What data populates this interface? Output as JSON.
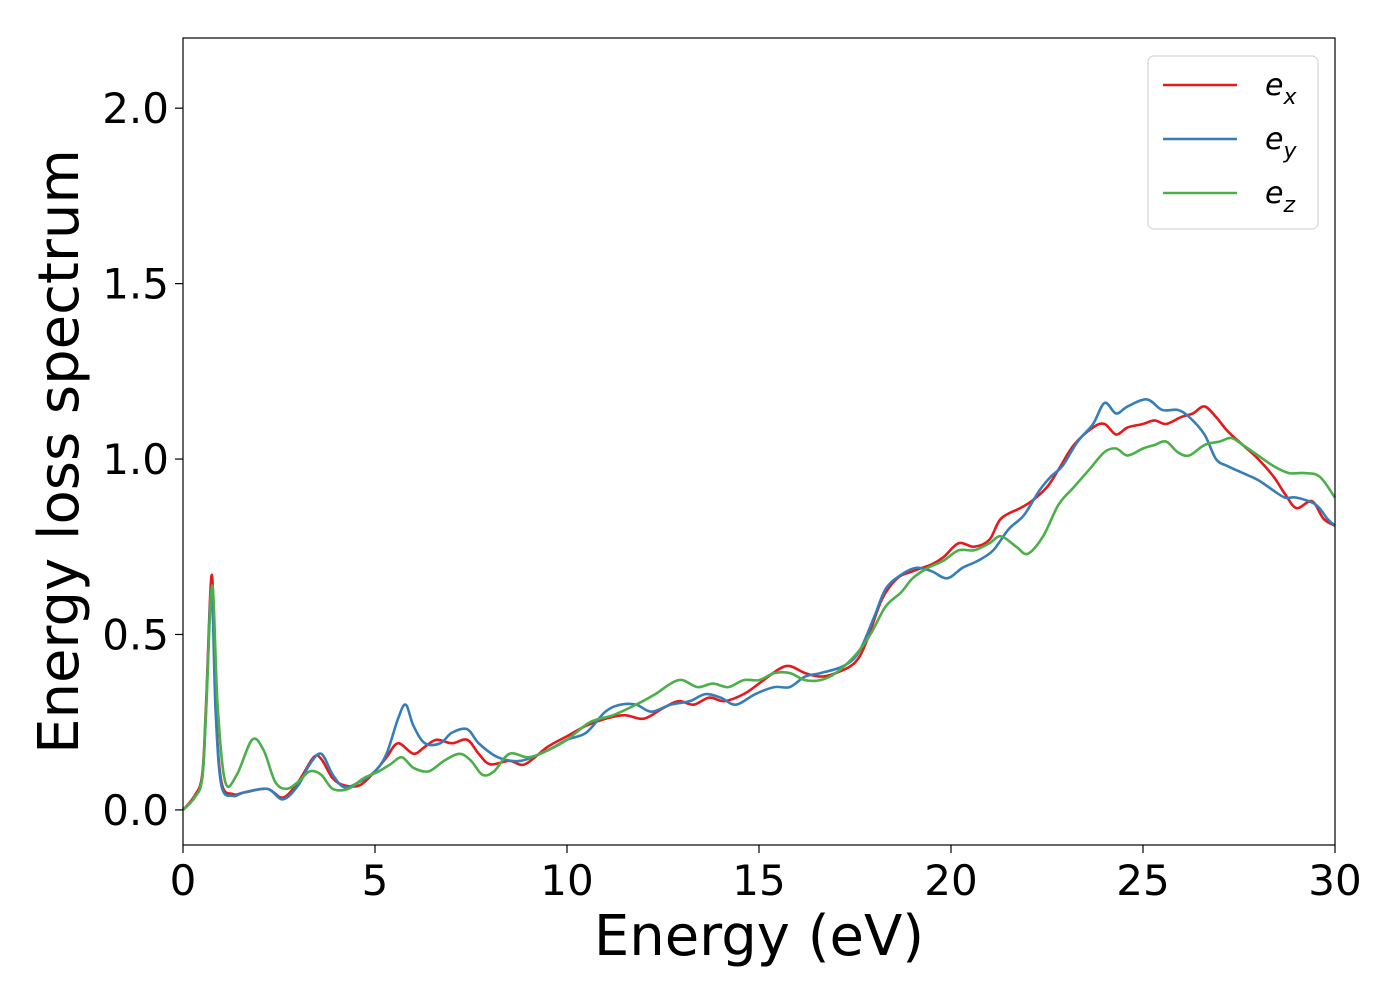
{
  "chart_data": {
    "type": "line",
    "title": "",
    "xlabel": "Energy (eV)",
    "ylabel": "Energy loss spectrum",
    "xlim": [
      0,
      30
    ],
    "ylim": [
      -0.1,
      2.2
    ],
    "xticks": [
      0,
      5,
      10,
      15,
      20,
      25,
      30
    ],
    "xtick_labels": [
      "0",
      "5",
      "10",
      "15",
      "20",
      "25",
      "30"
    ],
    "yticks": [
      0.0,
      0.5,
      1.0,
      1.5,
      2.0
    ],
    "ytick_labels": [
      "0.0",
      "0.5",
      "1.0",
      "1.5",
      "2.0"
    ],
    "grid": false,
    "legend_position": "top-right",
    "series": [
      {
        "name": "e_x",
        "legend_base": "e",
        "legend_sub": "x",
        "color": "#e41a1c",
        "points": [
          [
            0,
            0
          ],
          [
            0.3,
            0.04
          ],
          [
            0.5,
            0.1
          ],
          [
            0.6,
            0.3
          ],
          [
            0.75,
            0.67
          ],
          [
            0.85,
            0.3
          ],
          [
            1.0,
            0.08
          ],
          [
            1.3,
            0.045
          ],
          [
            1.6,
            0.05
          ],
          [
            2.2,
            0.06
          ],
          [
            2.6,
            0.035
          ],
          [
            3.0,
            0.08
          ],
          [
            3.4,
            0.15
          ],
          [
            3.6,
            0.145
          ],
          [
            3.9,
            0.09
          ],
          [
            4.2,
            0.07
          ],
          [
            4.6,
            0.07
          ],
          [
            5.0,
            0.11
          ],
          [
            5.3,
            0.15
          ],
          [
            5.6,
            0.19
          ],
          [
            6.0,
            0.16
          ],
          [
            6.3,
            0.18
          ],
          [
            6.6,
            0.2
          ],
          [
            7.0,
            0.19
          ],
          [
            7.4,
            0.2
          ],
          [
            7.7,
            0.16
          ],
          [
            8.0,
            0.13
          ],
          [
            8.5,
            0.14
          ],
          [
            8.9,
            0.13
          ],
          [
            9.5,
            0.18
          ],
          [
            10.0,
            0.21
          ],
          [
            10.5,
            0.24
          ],
          [
            11.0,
            0.26
          ],
          [
            11.5,
            0.27
          ],
          [
            12.0,
            0.26
          ],
          [
            12.5,
            0.29
          ],
          [
            12.9,
            0.31
          ],
          [
            13.3,
            0.3
          ],
          [
            13.7,
            0.32
          ],
          [
            14.1,
            0.31
          ],
          [
            14.6,
            0.33
          ],
          [
            15.0,
            0.36
          ],
          [
            15.5,
            0.4
          ],
          [
            15.8,
            0.41
          ],
          [
            16.2,
            0.39
          ],
          [
            16.6,
            0.38
          ],
          [
            17.0,
            0.39
          ],
          [
            17.5,
            0.42
          ],
          [
            17.8,
            0.48
          ],
          [
            18.2,
            0.6
          ],
          [
            18.6,
            0.66
          ],
          [
            19.0,
            0.68
          ],
          [
            19.5,
            0.7
          ],
          [
            19.8,
            0.72
          ],
          [
            20.2,
            0.76
          ],
          [
            20.6,
            0.75
          ],
          [
            21.0,
            0.77
          ],
          [
            21.3,
            0.83
          ],
          [
            21.8,
            0.86
          ],
          [
            22.1,
            0.88
          ],
          [
            22.5,
            0.92
          ],
          [
            22.8,
            0.97
          ],
          [
            23.2,
            1.04
          ],
          [
            23.7,
            1.09
          ],
          [
            24.0,
            1.1
          ],
          [
            24.3,
            1.07
          ],
          [
            24.6,
            1.09
          ],
          [
            25.0,
            1.1
          ],
          [
            25.3,
            1.11
          ],
          [
            25.6,
            1.1
          ],
          [
            26.0,
            1.12
          ],
          [
            26.3,
            1.13
          ],
          [
            26.6,
            1.15
          ],
          [
            26.9,
            1.12
          ],
          [
            27.2,
            1.08
          ],
          [
            27.6,
            1.04
          ],
          [
            28.0,
            1.0
          ],
          [
            28.4,
            0.95
          ],
          [
            28.7,
            0.9
          ],
          [
            29.0,
            0.86
          ],
          [
            29.4,
            0.88
          ],
          [
            29.7,
            0.83
          ],
          [
            30.0,
            0.81
          ]
        ]
      },
      {
        "name": "e_y",
        "legend_base": "e",
        "legend_sub": "y",
        "color": "#377eb8",
        "points": [
          [
            0,
            0
          ],
          [
            0.3,
            0.035
          ],
          [
            0.5,
            0.09
          ],
          [
            0.6,
            0.28
          ],
          [
            0.74,
            0.63
          ],
          [
            0.85,
            0.28
          ],
          [
            1.0,
            0.07
          ],
          [
            1.3,
            0.04
          ],
          [
            1.6,
            0.05
          ],
          [
            2.2,
            0.06
          ],
          [
            2.6,
            0.03
          ],
          [
            3.0,
            0.07
          ],
          [
            3.3,
            0.13
          ],
          [
            3.6,
            0.16
          ],
          [
            3.9,
            0.1
          ],
          [
            4.2,
            0.065
          ],
          [
            4.6,
            0.08
          ],
          [
            5.0,
            0.11
          ],
          [
            5.3,
            0.16
          ],
          [
            5.6,
            0.26
          ],
          [
            5.8,
            0.3
          ],
          [
            6.0,
            0.24
          ],
          [
            6.3,
            0.19
          ],
          [
            6.7,
            0.19
          ],
          [
            7.0,
            0.22
          ],
          [
            7.4,
            0.23
          ],
          [
            7.7,
            0.19
          ],
          [
            8.2,
            0.15
          ],
          [
            8.8,
            0.14
          ],
          [
            9.5,
            0.17
          ],
          [
            10.0,
            0.2
          ],
          [
            10.5,
            0.22
          ],
          [
            11.0,
            0.28
          ],
          [
            11.4,
            0.3
          ],
          [
            11.8,
            0.3
          ],
          [
            12.2,
            0.28
          ],
          [
            12.7,
            0.3
          ],
          [
            13.2,
            0.31
          ],
          [
            13.6,
            0.33
          ],
          [
            14.0,
            0.32
          ],
          [
            14.4,
            0.3
          ],
          [
            14.9,
            0.33
          ],
          [
            15.4,
            0.35
          ],
          [
            15.8,
            0.35
          ],
          [
            16.2,
            0.38
          ],
          [
            16.6,
            0.39
          ],
          [
            17.2,
            0.41
          ],
          [
            17.6,
            0.45
          ],
          [
            18.0,
            0.55
          ],
          [
            18.3,
            0.63
          ],
          [
            18.7,
            0.67
          ],
          [
            19.1,
            0.69
          ],
          [
            19.5,
            0.68
          ],
          [
            19.9,
            0.66
          ],
          [
            20.3,
            0.69
          ],
          [
            20.7,
            0.71
          ],
          [
            21.1,
            0.74
          ],
          [
            21.5,
            0.8
          ],
          [
            21.9,
            0.84
          ],
          [
            22.3,
            0.91
          ],
          [
            22.6,
            0.95
          ],
          [
            22.9,
            0.98
          ],
          [
            23.3,
            1.05
          ],
          [
            23.7,
            1.1
          ],
          [
            24.0,
            1.16
          ],
          [
            24.3,
            1.13
          ],
          [
            24.6,
            1.15
          ],
          [
            25.1,
            1.17
          ],
          [
            25.5,
            1.14
          ],
          [
            25.9,
            1.14
          ],
          [
            26.2,
            1.12
          ],
          [
            26.6,
            1.07
          ],
          [
            26.9,
            1.0
          ],
          [
            27.2,
            0.98
          ],
          [
            27.6,
            0.96
          ],
          [
            28.0,
            0.94
          ],
          [
            28.4,
            0.91
          ],
          [
            28.7,
            0.89
          ],
          [
            29.0,
            0.89
          ],
          [
            29.5,
            0.87
          ],
          [
            29.8,
            0.83
          ],
          [
            30.0,
            0.81
          ]
        ]
      },
      {
        "name": "e_z",
        "legend_base": "e",
        "legend_sub": "z",
        "color": "#4daf4a",
        "points": [
          [
            0,
            0
          ],
          [
            0.3,
            0.035
          ],
          [
            0.5,
            0.09
          ],
          [
            0.6,
            0.28
          ],
          [
            0.76,
            0.64
          ],
          [
            0.9,
            0.3
          ],
          [
            1.1,
            0.08
          ],
          [
            1.4,
            0.1
          ],
          [
            1.8,
            0.2
          ],
          [
            2.1,
            0.17
          ],
          [
            2.4,
            0.08
          ],
          [
            2.7,
            0.06
          ],
          [
            3.0,
            0.08
          ],
          [
            3.3,
            0.11
          ],
          [
            3.6,
            0.1
          ],
          [
            3.9,
            0.06
          ],
          [
            4.3,
            0.06
          ],
          [
            4.7,
            0.09
          ],
          [
            5.1,
            0.11
          ],
          [
            5.4,
            0.13
          ],
          [
            5.7,
            0.15
          ],
          [
            6.0,
            0.12
          ],
          [
            6.4,
            0.11
          ],
          [
            6.8,
            0.14
          ],
          [
            7.2,
            0.16
          ],
          [
            7.5,
            0.14
          ],
          [
            7.8,
            0.1
          ],
          [
            8.1,
            0.11
          ],
          [
            8.5,
            0.16
          ],
          [
            9.0,
            0.15
          ],
          [
            9.5,
            0.17
          ],
          [
            10.0,
            0.2
          ],
          [
            10.6,
            0.25
          ],
          [
            11.2,
            0.27
          ],
          [
            11.8,
            0.3
          ],
          [
            12.3,
            0.33
          ],
          [
            12.7,
            0.36
          ],
          [
            13.0,
            0.37
          ],
          [
            13.4,
            0.35
          ],
          [
            13.8,
            0.36
          ],
          [
            14.2,
            0.35
          ],
          [
            14.6,
            0.37
          ],
          [
            15.0,
            0.37
          ],
          [
            15.4,
            0.39
          ],
          [
            15.8,
            0.39
          ],
          [
            16.2,
            0.37
          ],
          [
            16.6,
            0.37
          ],
          [
            17.0,
            0.39
          ],
          [
            17.5,
            0.44
          ],
          [
            17.9,
            0.5
          ],
          [
            18.3,
            0.58
          ],
          [
            18.7,
            0.62
          ],
          [
            19.0,
            0.66
          ],
          [
            19.4,
            0.69
          ],
          [
            19.8,
            0.71
          ],
          [
            20.2,
            0.74
          ],
          [
            20.6,
            0.74
          ],
          [
            21.0,
            0.76
          ],
          [
            21.3,
            0.78
          ],
          [
            21.7,
            0.75
          ],
          [
            22.0,
            0.73
          ],
          [
            22.4,
            0.78
          ],
          [
            22.8,
            0.87
          ],
          [
            23.2,
            0.92
          ],
          [
            23.6,
            0.97
          ],
          [
            24.0,
            1.02
          ],
          [
            24.3,
            1.03
          ],
          [
            24.6,
            1.01
          ],
          [
            25.0,
            1.03
          ],
          [
            25.3,
            1.04
          ],
          [
            25.6,
            1.05
          ],
          [
            25.9,
            1.02
          ],
          [
            26.2,
            1.01
          ],
          [
            26.6,
            1.04
          ],
          [
            27.0,
            1.05
          ],
          [
            27.3,
            1.06
          ],
          [
            27.6,
            1.04
          ],
          [
            28.0,
            1.01
          ],
          [
            28.4,
            0.98
          ],
          [
            28.8,
            0.96
          ],
          [
            29.2,
            0.96
          ],
          [
            29.6,
            0.95
          ],
          [
            30.0,
            0.89
          ]
        ]
      }
    ]
  }
}
